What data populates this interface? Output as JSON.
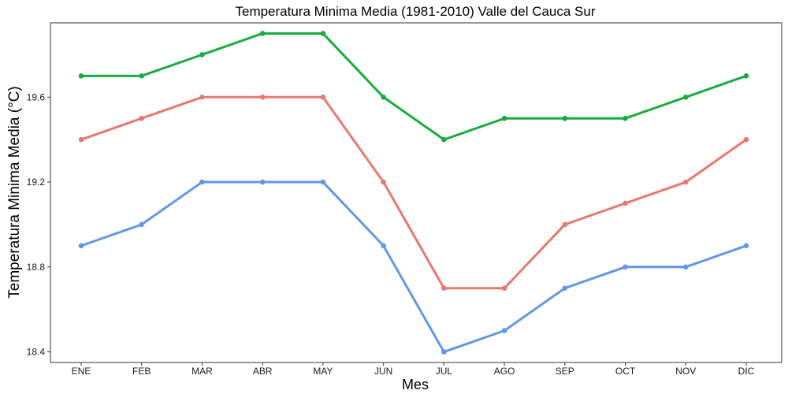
{
  "chart_data": {
    "type": "line",
    "title": "Temperatura Minima Media (1981-2010)  Valle del Cauca Sur",
    "xlabel": "Mes",
    "ylabel": "Temperatura Minima Media  (°C)",
    "categories": [
      "ENE",
      "FEB",
      "MAR",
      "ABR",
      "MAY",
      "JUN",
      "JUL",
      "AGO",
      "SEP",
      "OCT",
      "NOV",
      "DIC"
    ],
    "ylim": [
      18.35,
      19.95
    ],
    "yticks": [
      18.4,
      18.8,
      19.2,
      19.6
    ],
    "grid": false,
    "legend": "none",
    "series": [
      {
        "color": "#1aab40",
        "values": [
          19.7,
          19.7,
          19.8,
          19.9,
          19.9,
          19.6,
          19.4,
          19.5,
          19.5,
          19.5,
          19.6,
          19.7
        ]
      },
      {
        "color": "#e8786f",
        "values": [
          19.4,
          19.5,
          19.6,
          19.6,
          19.6,
          19.2,
          18.7,
          18.7,
          19.0,
          19.1,
          19.2,
          19.4
        ]
      },
      {
        "color": "#6496e6",
        "values": [
          18.9,
          19.0,
          19.2,
          19.2,
          19.2,
          18.9,
          18.4,
          18.5,
          18.7,
          18.8,
          18.8,
          18.9
        ]
      }
    ]
  }
}
